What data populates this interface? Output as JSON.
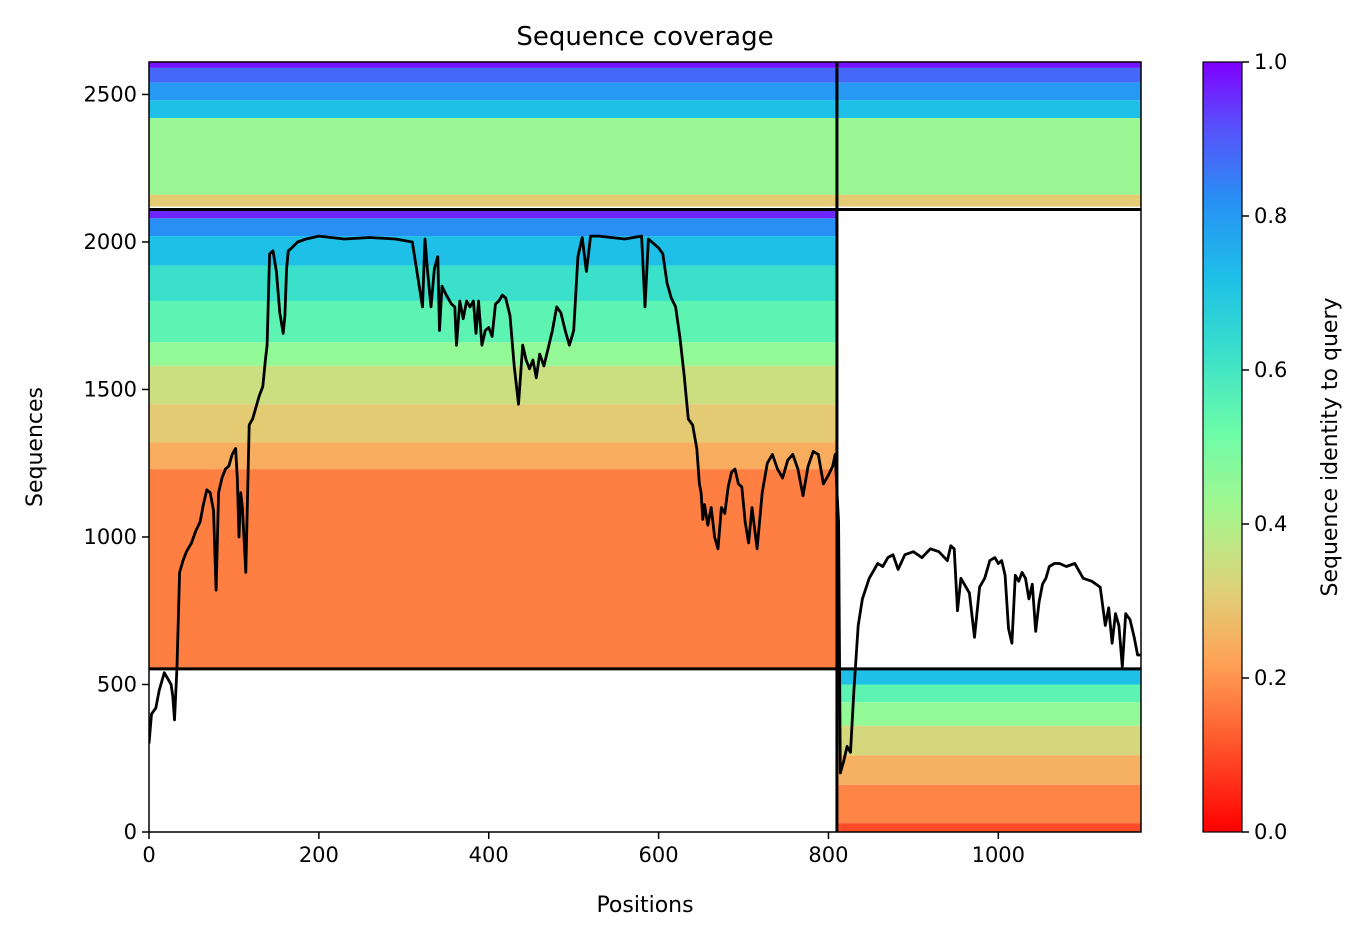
{
  "chart_data": {
    "type": "heatmap",
    "title": "Sequence coverage",
    "xlabel": "Positions",
    "ylabel": "Sequences",
    "xlim": [
      0,
      1168
    ],
    "ylim": [
      0,
      2610
    ],
    "xticks": [
      0,
      200,
      400,
      600,
      800,
      1000
    ],
    "yticks": [
      0,
      500,
      1000,
      1500,
      2000,
      2500
    ],
    "colorbar": {
      "label": "Sequence identity to query",
      "colormap": "rainbow",
      "range": [
        0,
        1
      ],
      "ticks": [
        "0.0",
        "0.2",
        "0.4",
        "0.6",
        "0.8",
        "1.0"
      ]
    },
    "block_boundaries": {
      "x": 810,
      "y": [
        553,
        2110
      ]
    },
    "blocks": [
      {
        "name": "top-full-block",
        "x": [
          0,
          1168
        ],
        "y": [
          2110,
          2610
        ],
        "bands": [
          {
            "y": [
              2590,
              2610
            ],
            "identity": 0.98
          },
          {
            "y": [
              2540,
              2590
            ],
            "identity": 0.88
          },
          {
            "y": [
              2480,
              2540
            ],
            "identity": 0.8
          },
          {
            "y": [
              2420,
              2480
            ],
            "identity": 0.72
          },
          {
            "y": [
              2160,
              2420
            ],
            "identity": 0.44
          },
          {
            "y": [
              2120,
              2160
            ],
            "identity": 0.3
          }
        ]
      },
      {
        "name": "middle-left-block",
        "x": [
          0,
          810
        ],
        "y": [
          553,
          2110
        ],
        "bands": [
          {
            "y": [
              2080,
              2110
            ],
            "identity": 0.96
          },
          {
            "y": [
              2020,
              2080
            ],
            "identity": 0.82
          },
          {
            "y": [
              1920,
              2020
            ],
            "identity": 0.72
          },
          {
            "y": [
              1800,
              1920
            ],
            "identity": 0.62
          },
          {
            "y": [
              1660,
              1800
            ],
            "identity": 0.55
          },
          {
            "y": [
              1580,
              1660
            ],
            "identity": 0.45
          },
          {
            "y": [
              1450,
              1580
            ],
            "identity": 0.35
          },
          {
            "y": [
              1320,
              1450
            ],
            "identity": 0.3
          },
          {
            "y": [
              1230,
              1320
            ],
            "identity": 0.24
          },
          {
            "y": [
              553,
              1230
            ],
            "identity": 0.17
          }
        ]
      },
      {
        "name": "bottom-right-block",
        "x": [
          810,
          1168
        ],
        "y": [
          0,
          553
        ],
        "bands": [
          {
            "y": [
              500,
              553
            ],
            "identity": 0.72
          },
          {
            "y": [
              440,
              500
            ],
            "identity": 0.55
          },
          {
            "y": [
              360,
              440
            ],
            "identity": 0.45
          },
          {
            "y": [
              260,
              360
            ],
            "identity": 0.33
          },
          {
            "y": [
              160,
              260
            ],
            "identity": 0.25
          },
          {
            "y": [
              30,
              160
            ],
            "identity": 0.18
          },
          {
            "y": [
              0,
              30
            ],
            "identity": 0.1
          }
        ]
      }
    ],
    "coverage_line": {
      "x": [
        0,
        3,
        8,
        12,
        18,
        22,
        26,
        28,
        30,
        33,
        36,
        40,
        44,
        50,
        55,
        60,
        64,
        68,
        72,
        76,
        79,
        82,
        86,
        90,
        94,
        98,
        102,
        104,
        106,
        108,
        110,
        114,
        118,
        122,
        126,
        130,
        134,
        137,
        139,
        142,
        146,
        150,
        154,
        158,
        160,
        162,
        164,
        168,
        175,
        185,
        200,
        230,
        260,
        290,
        310,
        322,
        325,
        328,
        332,
        336,
        340,
        342,
        345,
        350,
        356,
        360,
        362,
        366,
        370,
        374,
        378,
        382,
        385,
        388,
        392,
        396,
        400,
        404,
        408,
        412,
        416,
        420,
        425,
        430,
        435,
        440,
        444,
        448,
        452,
        456,
        460,
        465,
        470,
        475,
        480,
        485,
        490,
        495,
        500,
        505,
        510,
        515,
        520,
        530,
        560,
        580,
        584,
        588,
        592,
        596,
        600,
        605,
        610,
        615,
        620,
        625,
        630,
        635,
        640,
        645,
        648,
        650,
        652,
        654,
        658,
        662,
        666,
        670,
        674,
        678,
        682,
        686,
        690,
        694,
        698,
        702,
        706,
        710,
        716,
        722,
        728,
        734,
        740,
        746,
        752,
        758,
        764,
        770,
        776,
        782,
        788,
        794,
        800,
        805,
        808,
        810,
        812,
        814,
        818,
        822,
        826,
        830,
        835,
        840,
        848,
        852,
        858,
        864,
        870,
        876,
        882,
        890,
        900,
        910,
        920,
        930,
        940,
        944,
        948,
        952,
        956,
        960,
        966,
        972,
        978,
        984,
        990,
        996,
        1000,
        1004,
        1008,
        1012,
        1016,
        1020,
        1024,
        1028,
        1032,
        1036,
        1040,
        1044,
        1048,
        1052,
        1056,
        1060,
        1066,
        1072,
        1080,
        1090,
        1100,
        1110,
        1120,
        1126,
        1130,
        1134,
        1138,
        1142,
        1146,
        1150,
        1155,
        1160,
        1164,
        1168
      ],
      "y": [
        300,
        400,
        420,
        480,
        540,
        520,
        500,
        460,
        380,
        560,
        880,
        920,
        950,
        980,
        1020,
        1050,
        1110,
        1160,
        1150,
        1090,
        820,
        1150,
        1200,
        1230,
        1240,
        1280,
        1300,
        1200,
        1000,
        1150,
        1100,
        880,
        1380,
        1400,
        1440,
        1480,
        1510,
        1600,
        1650,
        1960,
        1970,
        1900,
        1760,
        1690,
        1750,
        1910,
        1970,
        1980,
        2000,
        2010,
        2020,
        2010,
        2015,
        2010,
        2000,
        1780,
        2010,
        1900,
        1780,
        1910,
        1950,
        1700,
        1850,
        1820,
        1790,
        1780,
        1650,
        1800,
        1740,
        1800,
        1780,
        1800,
        1690,
        1800,
        1650,
        1700,
        1710,
        1680,
        1790,
        1800,
        1820,
        1810,
        1750,
        1580,
        1450,
        1650,
        1600,
        1570,
        1600,
        1540,
        1620,
        1580,
        1640,
        1700,
        1780,
        1760,
        1700,
        1650,
        1700,
        1950,
        2015,
        1900,
        2020,
        2020,
        2010,
        2020,
        1780,
        2010,
        2000,
        1990,
        1980,
        1960,
        1860,
        1810,
        1780,
        1680,
        1550,
        1400,
        1380,
        1300,
        1180,
        1150,
        1060,
        1110,
        1040,
        1100,
        1000,
        960,
        1100,
        1080,
        1170,
        1220,
        1230,
        1180,
        1170,
        1050,
        980,
        1100,
        960,
        1150,
        1250,
        1280,
        1230,
        1200,
        1260,
        1280,
        1230,
        1140,
        1240,
        1290,
        1280,
        1180,
        1210,
        1240,
        1280,
        1160,
        1050,
        200,
        240,
        290,
        270,
        480,
        700,
        790,
        860,
        880,
        910,
        900,
        930,
        940,
        890,
        940,
        950,
        930,
        960,
        950,
        920,
        970,
        960,
        750,
        860,
        840,
        810,
        660,
        830,
        860,
        920,
        930,
        910,
        920,
        870,
        690,
        640,
        870,
        850,
        880,
        860,
        790,
        840,
        680,
        780,
        840,
        860,
        900,
        910,
        910,
        900,
        910,
        860,
        850,
        830,
        700,
        760,
        640,
        740,
        700,
        560,
        740,
        720,
        660,
        600,
        600
      ]
    }
  }
}
